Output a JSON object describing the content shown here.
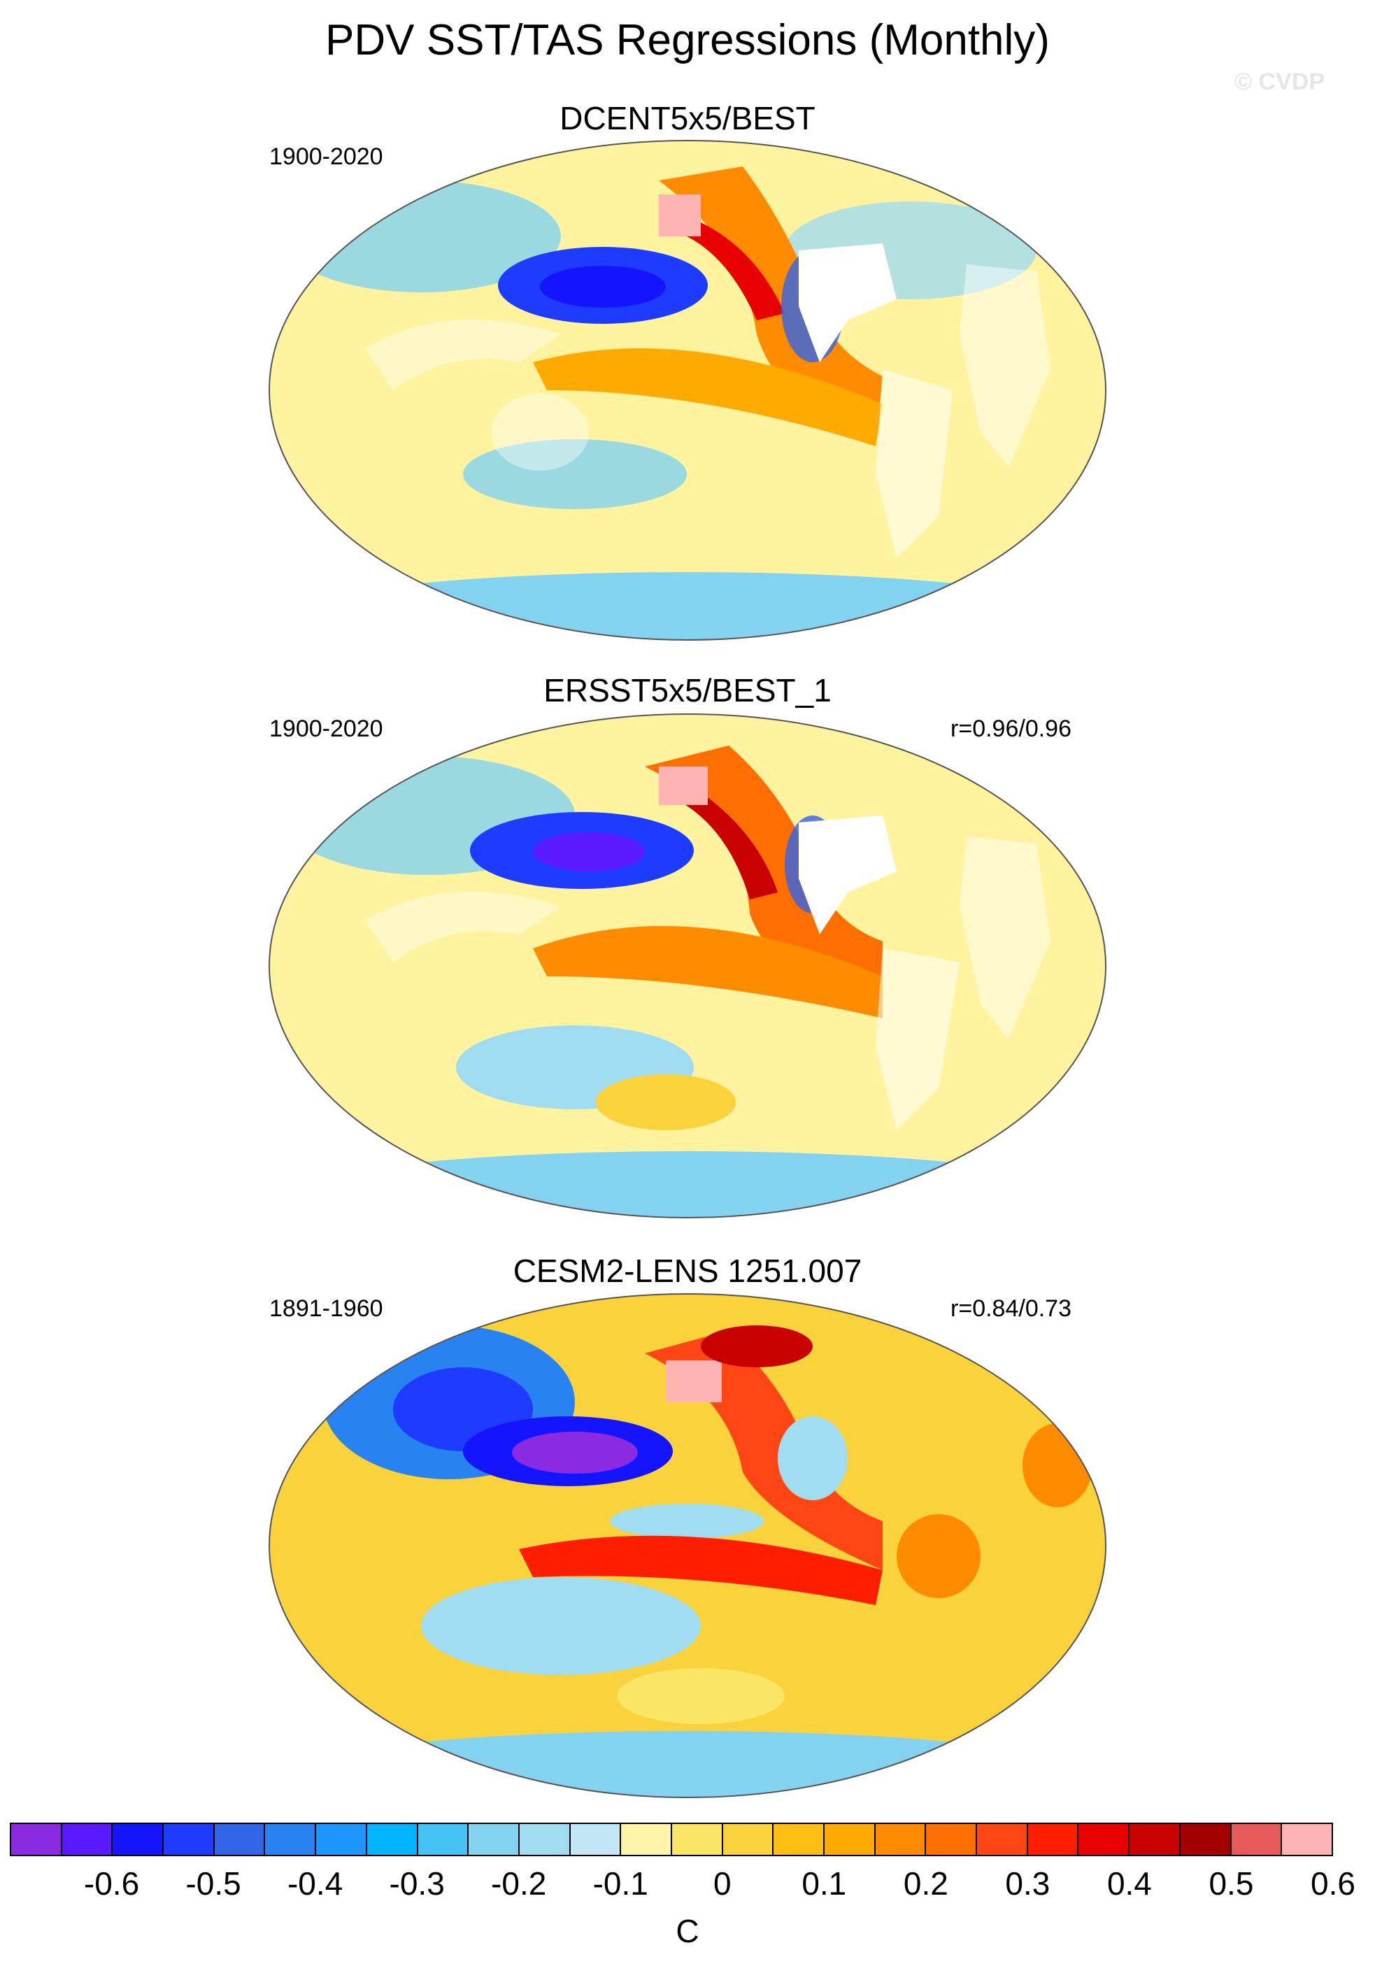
{
  "title": "PDV SST/TAS Regressions (Monthly)",
  "watermark": "© CVDP",
  "panels": [
    {
      "title": "DCENT5x5/BEST",
      "period": "1900-2020",
      "corr": ""
    },
    {
      "title": "ERSST5x5/BEST_1",
      "period": "1900-2020",
      "corr": "r=0.96/0.96"
    },
    {
      "title": "CESM2-LENS 1251.007",
      "period": "1891-1960",
      "corr": "r=0.84/0.73"
    }
  ],
  "colorbar": {
    "unit": "C",
    "labels": [
      "-0.6",
      "-0.5",
      "-0.4",
      "-0.3",
      "-0.2",
      "-0.1",
      "0",
      "0.1",
      "0.2",
      "0.3",
      "0.4",
      "0.5",
      "0.6"
    ],
    "colors": [
      "#8a2be2",
      "#5a1aff",
      "#1414ff",
      "#1e3cff",
      "#3264e6",
      "#2882f0",
      "#1e96ff",
      "#00b4ff",
      "#46c3f5",
      "#82d2f0",
      "#a0dcf0",
      "#c3e6f5",
      "#fff5aa",
      "#fae664",
      "#fad23c",
      "#ffbe14",
      "#ffaa00",
      "#ff8c00",
      "#ff6e00",
      "#ff4614",
      "#ff1e00",
      "#e60000",
      "#c80000",
      "#a50000",
      "#e65a5a",
      "#ffb4b4"
    ],
    "neutral": "#fffacd",
    "ocean_fill": "#fff3a0",
    "land_mask": "#ffffff"
  }
}
